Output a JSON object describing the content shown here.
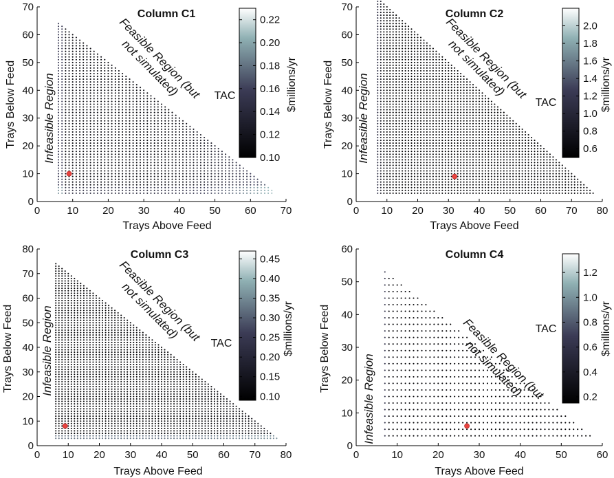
{
  "colors": {
    "dot_low": "#000000",
    "dot_high": "#ffffff",
    "dot_mid": "#7a7a8c",
    "optimum": "#e8433f",
    "axis": "#000000"
  },
  "chart_data": [
    {
      "type": "scatter",
      "title": "Column C1",
      "xlabel": "Trays Above Feed",
      "ylabel": "Trays Below Feed",
      "xlim": [
        0,
        70
      ],
      "ylim": [
        0,
        70
      ],
      "xticks": [
        0,
        10,
        20,
        30,
        40,
        50,
        60,
        70
      ],
      "yticks": [
        0,
        10,
        20,
        30,
        40,
        50,
        60,
        70
      ],
      "feasible": {
        "x_min": 6,
        "x_max": 66,
        "y_min": 3,
        "sum_max": 70
      },
      "infeasible_label": "Infeasible Region",
      "feasible_label": [
        "Feasible Region (but",
        "not simulated)"
      ],
      "colorbar": {
        "label": "TAC",
        "units": "$millions/yr",
        "min": 0.1,
        "max": 0.23,
        "ticks": [
          0.1,
          0.12,
          0.14,
          0.16,
          0.18,
          0.2,
          0.22
        ],
        "tick_labels": [
          "0.10",
          "0.12",
          "0.14",
          "0.16",
          "0.18",
          "0.20",
          "0.22"
        ]
      },
      "optimum": {
        "x": 9,
        "y": 10
      }
    },
    {
      "type": "scatter",
      "title": "Column C2",
      "xlabel": "Trays Above Feed",
      "ylabel": "Trays Below Feed",
      "xlim": [
        0,
        80
      ],
      "ylim": [
        0,
        70
      ],
      "xticks": [
        0,
        10,
        20,
        30,
        40,
        50,
        60,
        70,
        80
      ],
      "yticks": [
        0,
        10,
        20,
        30,
        40,
        50,
        60,
        70
      ],
      "feasible": {
        "x_min": 7,
        "x_max": 77,
        "y_min": 3,
        "sum_max": 80
      },
      "infeasible_label": "Infeasible Region",
      "feasible_label": [
        "Feasible Region (but",
        "not simulated)"
      ],
      "colorbar": {
        "label": "TAC",
        "units": "$millions/yr",
        "min": 0.5,
        "max": 2.2,
        "ticks": [
          0.6,
          0.8,
          1.0,
          1.2,
          1.4,
          1.6,
          1.8,
          2.0
        ],
        "tick_labels": [
          "0.6",
          "0.8",
          "1.0",
          "1.2",
          "1.4",
          "1.6",
          "1.8",
          "2.0"
        ]
      },
      "optimum": {
        "x": 32,
        "y": 9
      }
    },
    {
      "type": "scatter",
      "title": "Column C3",
      "xlabel": "Trays Above Feed",
      "ylabel": "Trays Below Feed",
      "xlim": [
        0,
        80
      ],
      "ylim": [
        0,
        80
      ],
      "xticks": [
        0,
        10,
        20,
        30,
        40,
        50,
        60,
        70,
        80
      ],
      "yticks": [
        0,
        10,
        20,
        30,
        40,
        50,
        60,
        70,
        80
      ],
      "feasible": {
        "x_min": 6,
        "x_max": 77,
        "y_min": 3,
        "sum_max": 80
      },
      "infeasible_label": "Infeasible Region",
      "feasible_label": [
        "Feasible Region (but",
        "not simulated)"
      ],
      "colorbar": {
        "label": "TAC",
        "units": "$millions/yr",
        "min": 0.09,
        "max": 0.47,
        "ticks": [
          0.1,
          0.15,
          0.2,
          0.25,
          0.3,
          0.35,
          0.4,
          0.45
        ],
        "tick_labels": [
          "0.10",
          "0.15",
          "0.20",
          "0.25",
          "0.30",
          "0.35",
          "0.40",
          "0.45"
        ]
      },
      "optimum": {
        "x": 9,
        "y": 8
      }
    },
    {
      "type": "scatter",
      "title": "Column C4",
      "xlabel": "Trays Above Feed",
      "ylabel": "Trays Below Feed",
      "xlim": [
        0,
        60
      ],
      "ylim": [
        0,
        60
      ],
      "xticks": [
        0,
        10,
        20,
        30,
        40,
        50,
        60
      ],
      "yticks": [
        0,
        10,
        20,
        30,
        40,
        50,
        60
      ],
      "feasible": {
        "x_min": 7,
        "x_max": 57,
        "y_min": 3,
        "sum_max": 60
      },
      "infeasible_label": "Infeasible Region",
      "feasible_label": [
        "Feasible Region (but",
        "not simulated)"
      ],
      "colorbar": {
        "label": "TAC",
        "units": "$millions/yr",
        "min": 0.15,
        "max": 1.35,
        "ticks": [
          0.2,
          0.4,
          0.6,
          0.8,
          1.0,
          1.2
        ],
        "tick_labels": [
          "0.2",
          "0.4",
          "0.6",
          "0.8",
          "1.0",
          "1.2"
        ]
      },
      "optimum": {
        "x": 27,
        "y": 6
      }
    }
  ]
}
